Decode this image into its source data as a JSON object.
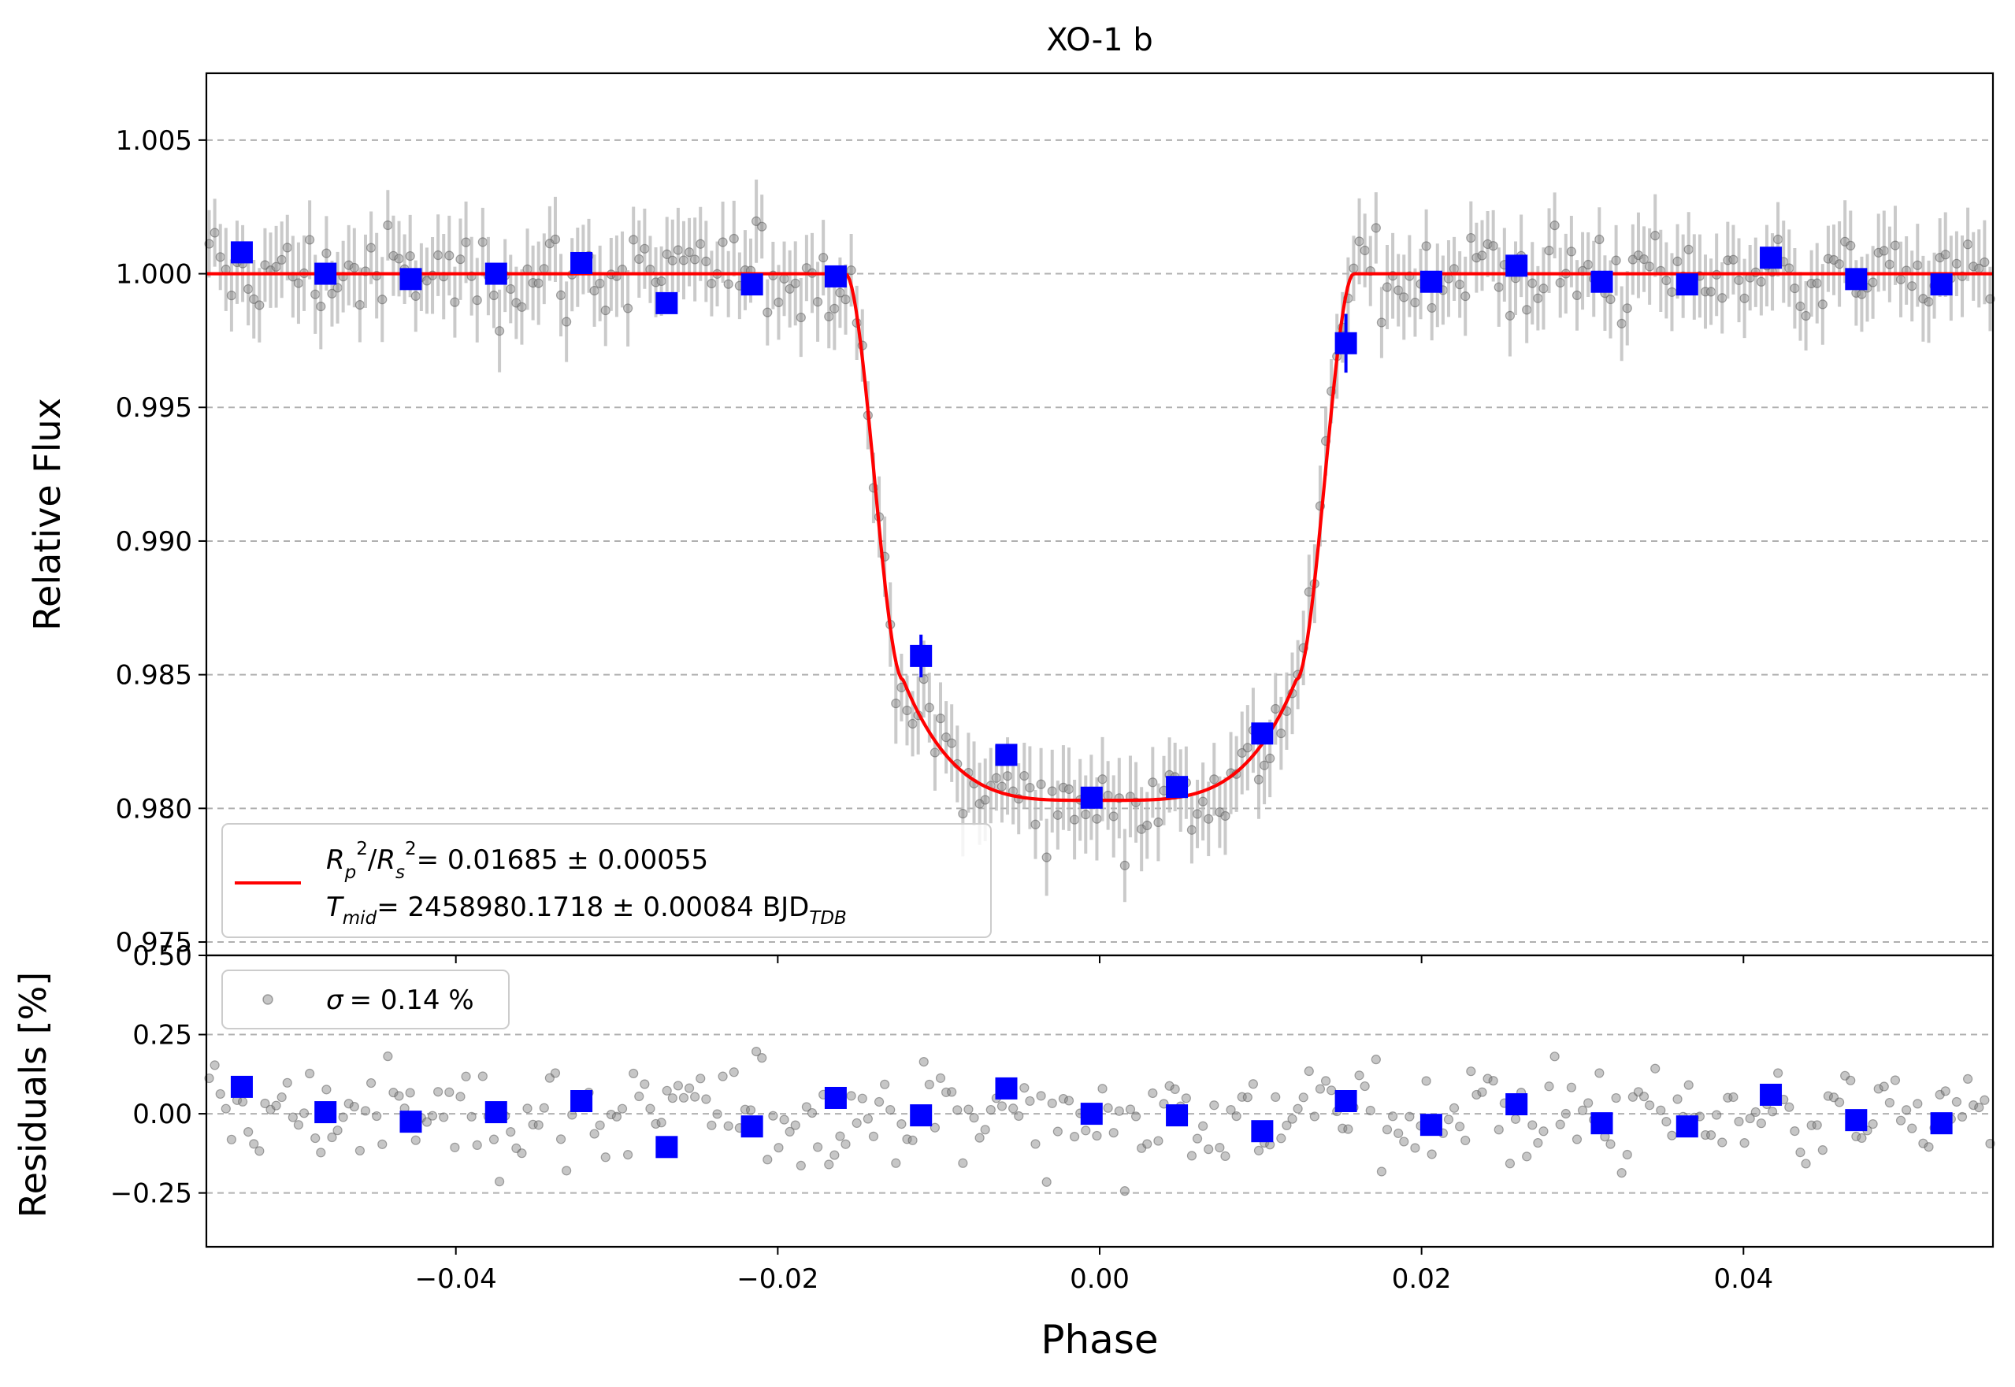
{
  "chart_data": [
    {
      "type": "scatter",
      "panel": "light curve",
      "title": "XO-1 b",
      "xlabel": "",
      "ylabel": "Relative Flux",
      "xlim": [
        -0.0555,
        0.0555
      ],
      "ylim": [
        0.9745,
        1.0075
      ],
      "xticks": [
        -0.04,
        -0.02,
        0.0,
        0.02,
        0.04
      ],
      "yticks": [
        0.975,
        0.98,
        0.985,
        0.99,
        0.995,
        1.0,
        1.005
      ],
      "ytick_labels": [
        "0.975",
        "0.980",
        "0.985",
        "0.990",
        "0.995",
        "1.000",
        "1.005"
      ],
      "grid": "horizontal dashed",
      "legend_position": "lower-left",
      "legend": [
        "R_p^2/R_s^2 = 0.01685 ± 0.00055",
        "T_mid = 2458980.1718 ± 0.00084 BJD_TDB"
      ],
      "legend_parts": {
        "rp_ratio_value": "= 0.01685 ± 0.00055",
        "tmid_value": "= 2458980.1718 ± 0.00084 BJD",
        "tmid_sub": "TDB"
      },
      "model": {
        "name": "",
        "color": "#ff0000",
        "baseline": 1.0,
        "t1": -0.0158,
        "t2": -0.0122,
        "t3": 0.0122,
        "t4": 0.0158,
        "min_flux": 0.9803,
        "edge_flux": 0.9848
      },
      "binned": {
        "color": "#0000ff",
        "x": [
          -0.0533,
          -0.0481,
          -0.0428,
          -0.0375,
          -0.0322,
          -0.0269,
          -0.0216,
          -0.0164,
          -0.0111,
          -0.0058,
          -0.0005,
          0.0048,
          0.0101,
          0.0153,
          0.0206,
          0.0259,
          0.0312,
          0.0365,
          0.0417,
          0.047,
          0.0523
        ],
        "y": [
          1.0008,
          1.0,
          0.9998,
          1.0,
          1.0004,
          0.9989,
          0.9996,
          0.9999,
          0.9857,
          0.982,
          0.9804,
          0.9808,
          0.9828,
          0.9974,
          0.9997,
          1.0003,
          0.9997,
          0.9996,
          1.0006,
          0.9998,
          0.9996
        ],
        "yerr": [
          0.0003,
          0.0003,
          0.0003,
          0.0003,
          0.0003,
          0.0003,
          0.0003,
          0.0003,
          0.0008,
          0.0003,
          0.0003,
          0.0003,
          0.0003,
          0.0011,
          0.0003,
          0.0003,
          0.0003,
          0.0003,
          0.0003,
          0.0003,
          0.0003
        ]
      },
      "raw": {
        "color": "#808080",
        "n_points": 320,
        "typical_error": 0.0014,
        "scatter_sigma_percent": 0.14
      }
    },
    {
      "type": "scatter",
      "panel": "residuals",
      "xlabel": "Phase",
      "ylabel": "Residuals [%]",
      "xlim": [
        -0.0555,
        0.0555
      ],
      "ylim": [
        -0.42,
        0.5
      ],
      "xticks": [
        -0.04,
        -0.02,
        0.0,
        0.02,
        0.04
      ],
      "xtick_labels": [
        "−0.04",
        "−0.02",
        "0.00",
        "0.02",
        "0.04"
      ],
      "yticks": [
        -0.25,
        0.0,
        0.25,
        0.5
      ],
      "ytick_labels": [
        "−0.25",
        "0.00",
        "0.25",
        "0.50"
      ],
      "grid": "horizontal dashed",
      "legend_position": "top-left",
      "legend": [
        "σ = 0.14 %"
      ],
      "legend_parts": {
        "sigma_value": "= 0.14 %"
      },
      "binned": {
        "color": "#0000ff",
        "x": [
          -0.0533,
          -0.0481,
          -0.0428,
          -0.0375,
          -0.0322,
          -0.0269,
          -0.0216,
          -0.0164,
          -0.0111,
          -0.0058,
          -0.0005,
          0.0048,
          0.0101,
          0.0153,
          0.0206,
          0.0259,
          0.0312,
          0.0365,
          0.0417,
          0.047,
          0.0523
        ],
        "y": [
          0.085,
          0.005,
          -0.025,
          0.005,
          0.04,
          -0.105,
          -0.04,
          0.05,
          -0.005,
          0.08,
          0.0,
          -0.005,
          -0.055,
          0.04,
          -0.035,
          0.03,
          -0.03,
          -0.04,
          0.06,
          -0.02,
          -0.03
        ]
      },
      "raw": {
        "color": "#808080",
        "n_points": 320,
        "sigma_percent": 0.14
      }
    }
  ]
}
